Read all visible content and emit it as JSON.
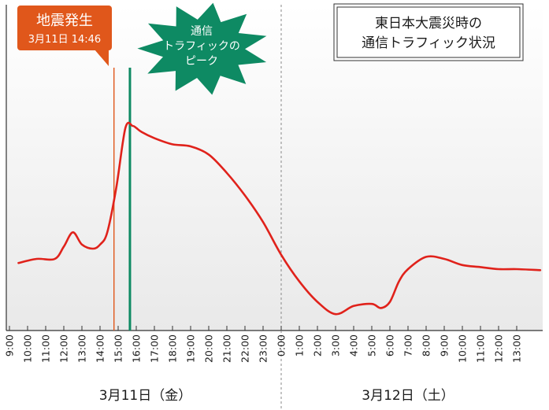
{
  "chart_data": {
    "type": "line",
    "title_lines": [
      "東日本大震災時の",
      "通信トラフィック状況"
    ],
    "x_ticks": [
      "9:00",
      "10:00",
      "11:00",
      "12:00",
      "13:00",
      "14:00",
      "15:00",
      "16:00",
      "17:00",
      "18:00",
      "19:00",
      "20:00",
      "21:00",
      "22:00",
      "23:00",
      "0:00",
      "1:00",
      "2:00",
      "3:00",
      "4:00",
      "5:00",
      "6:00",
      "7:00",
      "8:00",
      "9:00",
      "10:00",
      "11:00",
      "12:00",
      "13:00"
    ],
    "date_labels": [
      {
        "label": "3月11日（金）",
        "start_hour": 9,
        "end_hour": 24
      },
      {
        "label": "3月12日（土）",
        "start_hour": 24,
        "end_hour": 38
      }
    ],
    "day_boundary_hour": 24,
    "xlim": [
      9,
      38.3
    ],
    "ylim": [
      0,
      100
    ],
    "grid": false,
    "y_axis_labels": "none",
    "series": [
      {
        "color": "#e0221b",
        "x": [
          9.5,
          10.5,
          11.5,
          12,
          12.5,
          13,
          13.6,
          14,
          14.4,
          14.9,
          15.4,
          15.8,
          16,
          16.3,
          17,
          18,
          19,
          20,
          21,
          22,
          23,
          24,
          25,
          26,
          27,
          28,
          29,
          29.5,
          30,
          30.5,
          31,
          32,
          33,
          34,
          35,
          36,
          37,
          38.3
        ],
        "y": [
          33,
          35,
          35,
          41,
          48,
          42,
          40,
          42,
          48,
          70,
          99,
          100,
          99,
          97,
          94,
          91,
          90,
          86,
          77,
          66,
          53,
          37,
          24,
          14,
          8,
          12,
          13,
          11,
          14,
          24,
          30,
          36,
          35,
          32,
          31,
          30,
          30,
          29.5
        ]
      }
    ],
    "annotations": {
      "quake": {
        "title": "地震発生",
        "subtitle": "3月11日 14:46",
        "hour": 14.77,
        "color": "#e0571b"
      },
      "peak": {
        "text_lines": [
          "通信",
          "トラフィックの",
          "ピーク"
        ],
        "hour": 15.65,
        "color": "#0e8a63"
      }
    }
  }
}
